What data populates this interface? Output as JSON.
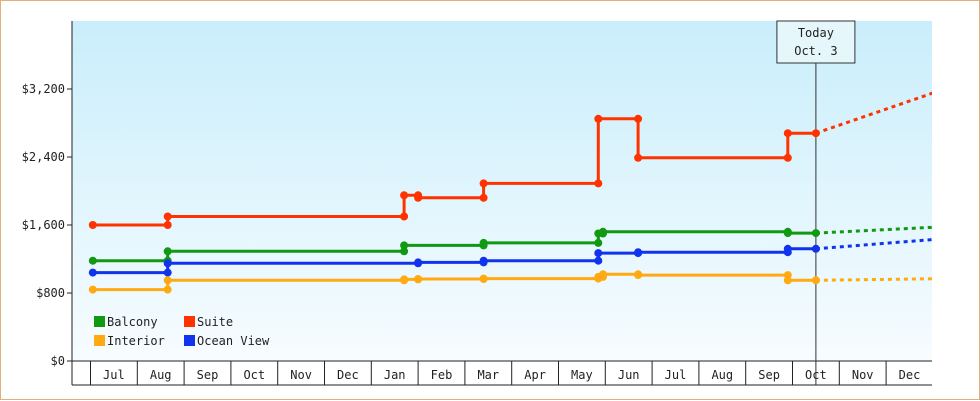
{
  "chart_data": {
    "type": "line",
    "title": "",
    "xlabel": "",
    "ylabel": "",
    "ylim": [
      0,
      4000
    ],
    "y_ticks": [
      "$0",
      "$800",
      "$1,600",
      "$2,400",
      "$3,200"
    ],
    "y_tick_values": [
      0,
      800,
      1600,
      2400,
      3200
    ],
    "x_ticks": [
      "Jul",
      "Aug",
      "Sep",
      "Oct",
      "Nov",
      "Dec",
      "Jan",
      "Feb",
      "Mar",
      "Apr",
      "May",
      "Jun",
      "Jul",
      "Aug",
      "Sep",
      "Oct",
      "Nov",
      "Dec"
    ],
    "grid": false,
    "legend": "bottom-left",
    "today_marker": {
      "line1": "Today",
      "line2": "Oct. 3",
      "month": 15.0
    },
    "series": [
      {
        "name": "Suite",
        "color": "#ff3300",
        "points": [
          [
            -0.45,
            1600
          ],
          [
            1.15,
            1600
          ],
          [
            1.15,
            1700
          ],
          [
            6.2,
            1700
          ],
          [
            6.2,
            1950
          ],
          [
            6.5,
            1950
          ],
          [
            6.5,
            1920
          ],
          [
            7.9,
            1920
          ],
          [
            7.9,
            2090
          ],
          [
            10.35,
            2090
          ],
          [
            10.35,
            2850
          ],
          [
            11.2,
            2850
          ],
          [
            11.2,
            2390
          ],
          [
            14.4,
            2390
          ],
          [
            14.4,
            2680
          ],
          [
            15.0,
            2680
          ]
        ],
        "forecast": [
          [
            15.0,
            2680
          ],
          [
            17.75,
            3200
          ]
        ]
      },
      {
        "name": "Balcony",
        "color": "#119911",
        "points": [
          [
            -0.45,
            1180
          ],
          [
            1.15,
            1180
          ],
          [
            1.15,
            1290
          ],
          [
            6.2,
            1290
          ],
          [
            6.2,
            1360
          ],
          [
            7.9,
            1360
          ],
          [
            7.9,
            1390
          ],
          [
            10.35,
            1390
          ],
          [
            10.35,
            1500
          ],
          [
            10.45,
            1500
          ],
          [
            10.45,
            1520
          ],
          [
            14.4,
            1520
          ],
          [
            14.4,
            1505
          ],
          [
            15.0,
            1505
          ]
        ],
        "forecast": [
          [
            15.0,
            1505
          ],
          [
            17.75,
            1580
          ]
        ]
      },
      {
        "name": "Ocean View",
        "color": "#1133ee",
        "points": [
          [
            -0.45,
            1040
          ],
          [
            1.15,
            1040
          ],
          [
            1.15,
            1150
          ],
          [
            6.5,
            1150
          ],
          [
            6.5,
            1160
          ],
          [
            7.9,
            1160
          ],
          [
            7.9,
            1180
          ],
          [
            10.35,
            1180
          ],
          [
            10.35,
            1270
          ],
          [
            11.2,
            1270
          ],
          [
            11.2,
            1280
          ],
          [
            14.4,
            1280
          ],
          [
            14.4,
            1320
          ],
          [
            15.0,
            1320
          ]
        ],
        "forecast": [
          [
            15.0,
            1320
          ],
          [
            17.75,
            1440
          ]
        ]
      },
      {
        "name": "Interior",
        "color": "#ffaa11",
        "points": [
          [
            -0.45,
            840
          ],
          [
            1.15,
            840
          ],
          [
            1.15,
            950
          ],
          [
            6.2,
            950
          ],
          [
            6.2,
            960
          ],
          [
            6.5,
            960
          ],
          [
            6.5,
            965
          ],
          [
            7.9,
            965
          ],
          [
            7.9,
            970
          ],
          [
            10.35,
            970
          ],
          [
            10.35,
            990
          ],
          [
            10.45,
            990
          ],
          [
            10.45,
            1020
          ],
          [
            11.2,
            1020
          ],
          [
            11.2,
            1010
          ],
          [
            14.4,
            1010
          ],
          [
            14.4,
            950
          ],
          [
            15.0,
            950
          ]
        ],
        "forecast": [
          [
            15.0,
            950
          ],
          [
            17.75,
            970
          ]
        ]
      }
    ]
  }
}
